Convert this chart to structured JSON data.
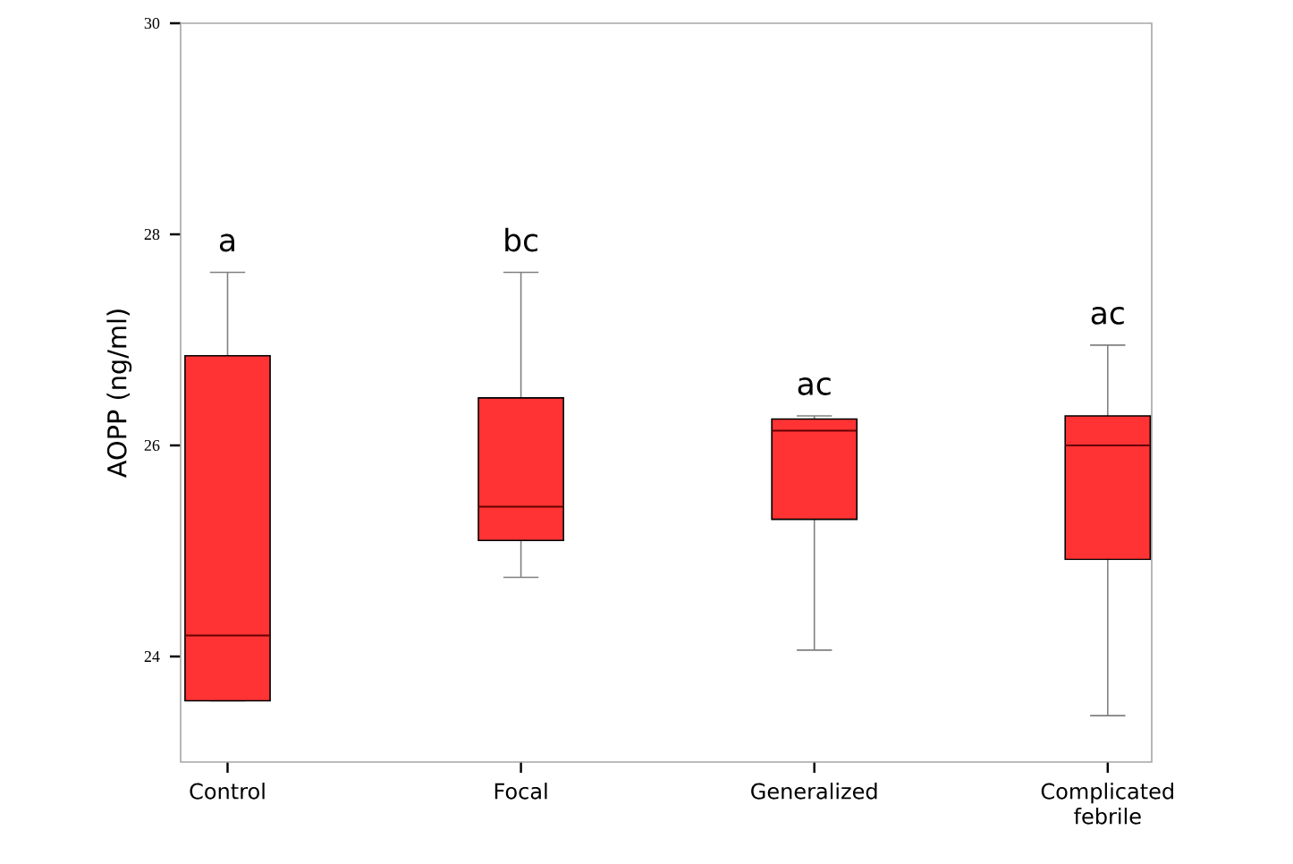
{
  "chart_data": {
    "type": "box",
    "ylabel": "AOPP (ng/ml)",
    "categories": [
      "Control",
      "Focal",
      "Generalized",
      "Complicated febrile"
    ],
    "boxes": [
      {
        "low": 23.58,
        "q1": 23.58,
        "median": 24.2,
        "q3": 26.85,
        "high": 27.64
      },
      {
        "low": 24.75,
        "q1": 25.1,
        "median": 25.42,
        "q3": 26.45,
        "high": 27.64
      },
      {
        "low": 24.06,
        "q1": 25.3,
        "median": 26.14,
        "q3": 26.25,
        "high": 26.28
      },
      {
        "low": 23.44,
        "q1": 24.92,
        "median": 26.0,
        "q3": 26.28,
        "high": 26.95
      }
    ],
    "color": "#ff3333",
    "ylim": [
      23,
      30
    ],
    "yticks": [
      24,
      26,
      28,
      30
    ],
    "grid": false,
    "annotations": [
      "a",
      "bc",
      "ac",
      "ac"
    ]
  }
}
